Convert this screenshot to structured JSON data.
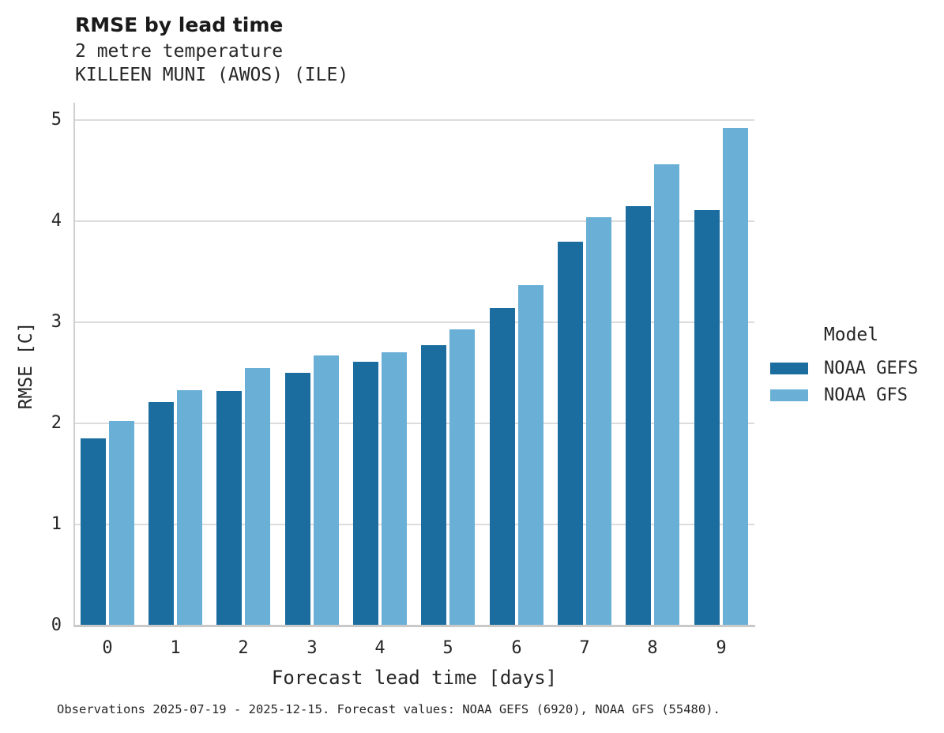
{
  "header": {
    "title": "RMSE by lead time",
    "subtitle_lines": [
      "2 metre temperature",
      "KILLEEN MUNI (AWOS) (ILE)"
    ]
  },
  "chart_data": {
    "type": "bar",
    "title": "RMSE by lead time",
    "subtitle_lines": [
      "2 metre temperature",
      "KILLEEN MUNI (AWOS) (ILE)"
    ],
    "categories": [
      "0",
      "1",
      "2",
      "3",
      "4",
      "5",
      "6",
      "7",
      "8",
      "9"
    ],
    "series": [
      {
        "name": "NOAA GEFS",
        "color": "#1a6d9e",
        "values": [
          1.85,
          2.21,
          2.32,
          2.5,
          2.61,
          2.77,
          3.14,
          3.8,
          4.15,
          4.11
        ]
      },
      {
        "name": "NOAA GFS",
        "color": "#69afd6",
        "values": [
          2.02,
          2.33,
          2.55,
          2.67,
          2.7,
          2.93,
          3.37,
          4.04,
          4.56,
          4.92
        ]
      }
    ],
    "xlabel": "Forecast lead time [days]",
    "ylabel": "RMSE [C]",
    "ylim": [
      0,
      5.17
    ],
    "yticks": [
      0,
      1,
      2,
      3,
      4,
      5
    ],
    "grid": true,
    "legend_title": "Model",
    "legend_position": "right"
  },
  "footer": {
    "caption": "Observations 2025-07-19 - 2025-12-15. Forecast values: NOAA GEFS (6920), NOAA GFS (55480)."
  },
  "colors": {
    "gefs_bar": "#1a6d9e",
    "gfs_bar": "#69afd6",
    "gridline": "#dcdcdc",
    "axis": "#c9c9c9",
    "text": "#262626"
  }
}
